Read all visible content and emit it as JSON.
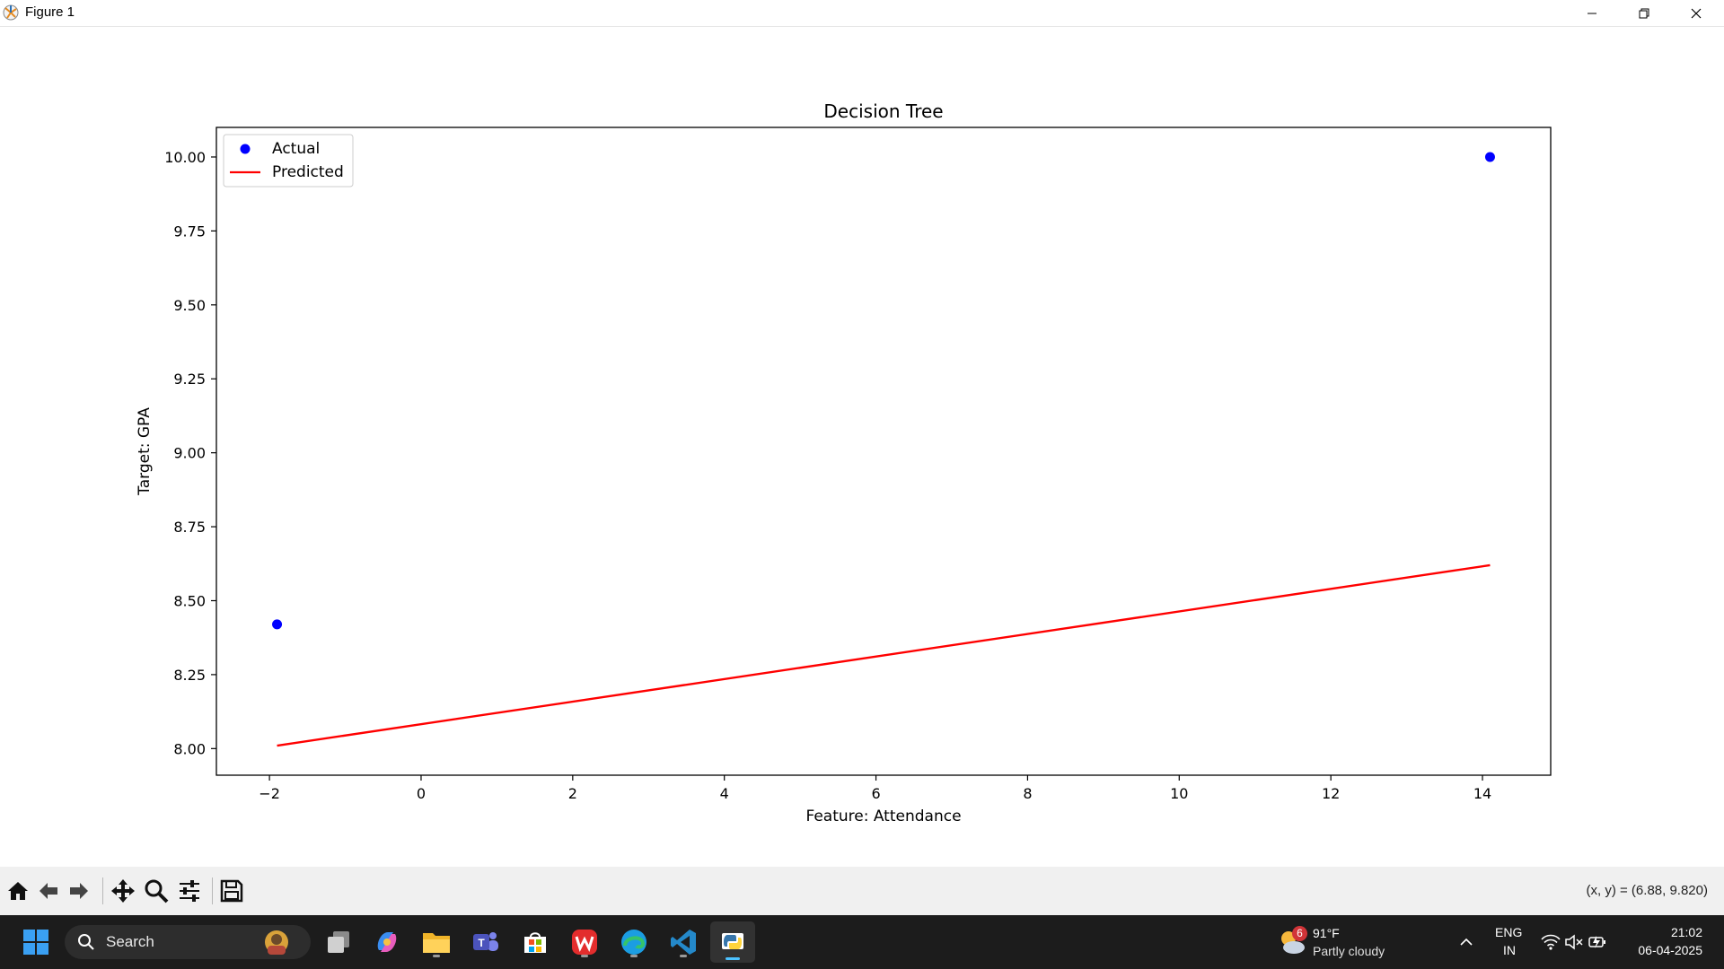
{
  "window": {
    "title": "Figure 1"
  },
  "chart_data": {
    "type": "scatter",
    "title": "Decision Tree",
    "xlabel": "Feature: Attendance",
    "ylabel": "Target: GPA",
    "xlim": [
      -2.7,
      14.9
    ],
    "ylim": [
      7.91,
      10.1
    ],
    "xticks": [
      -2,
      0,
      2,
      4,
      6,
      8,
      10,
      12,
      14
    ],
    "xtick_labels": [
      "−2",
      "0",
      "2",
      "4",
      "6",
      "8",
      "10",
      "12",
      "14"
    ],
    "yticks": [
      8.0,
      8.25,
      8.5,
      8.75,
      9.0,
      9.25,
      9.5,
      9.75,
      10.0
    ],
    "ytick_labels": [
      "8.00",
      "8.25",
      "8.50",
      "8.75",
      "9.00",
      "9.25",
      "9.50",
      "9.75",
      "10.00"
    ],
    "grid": false,
    "legend_position": "upper-left",
    "series": [
      {
        "name": "Actual",
        "kind": "scatter",
        "color": "#0000ff",
        "points": [
          {
            "x": -1.9,
            "y": 8.42
          },
          {
            "x": 14.1,
            "y": 10.0
          }
        ]
      },
      {
        "name": "Predicted",
        "kind": "line",
        "color": "#ff0000",
        "points": [
          {
            "x": -1.9,
            "y": 8.01
          },
          {
            "x": 14.1,
            "y": 8.62
          }
        ]
      }
    ]
  },
  "toolbar": {
    "buttons": [
      "home-icon",
      "back-arrow-icon",
      "forward-arrow-icon",
      "pan-icon",
      "zoom-icon",
      "configure-subplots-icon",
      "save-icon"
    ],
    "coordinates": "(x, y) = (6.88, 9.820)"
  },
  "taskbar": {
    "search_label": "Search",
    "weather": {
      "badge": "6",
      "temp": "91°F",
      "condition": "Partly cloudy"
    },
    "language": "ENG",
    "region": "IN",
    "time": "21:02",
    "date": "06-04-2025"
  }
}
